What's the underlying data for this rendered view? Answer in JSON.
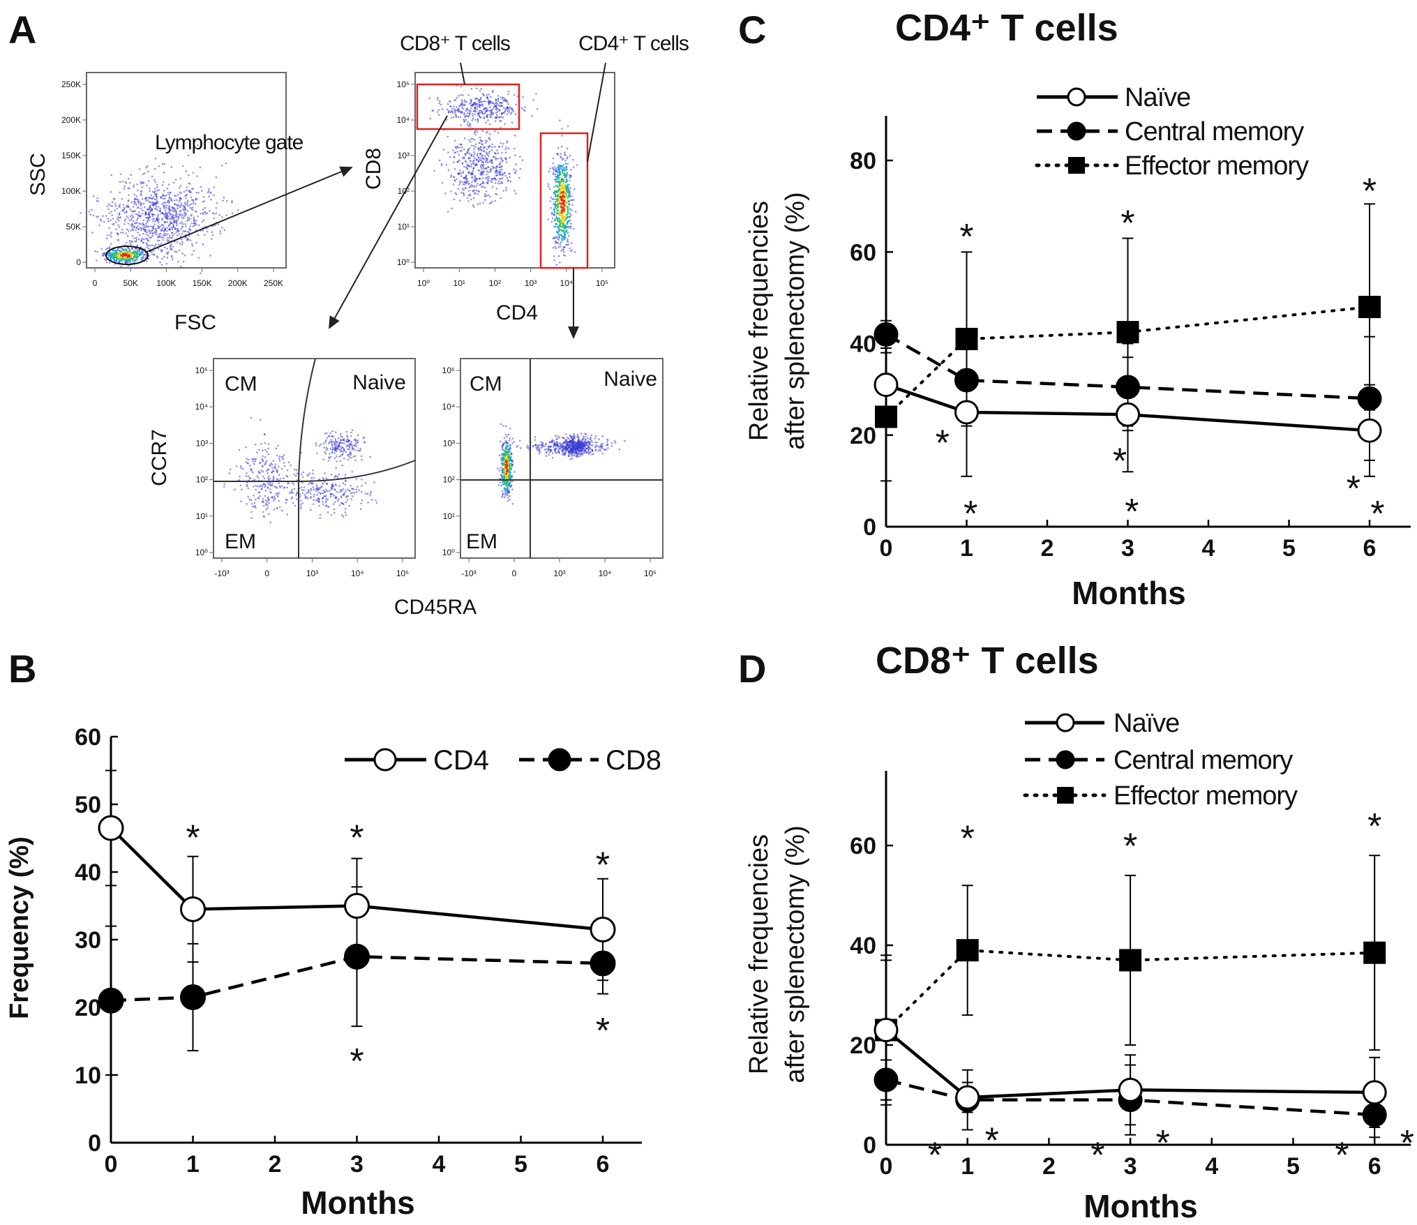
{
  "panels": {
    "A": {
      "letter": "A",
      "plot_scatter": {
        "xlabel": "FSC",
        "ylabel": "SSC",
        "gate_label": "Lymphocyte gate",
        "xticks": [
          "0",
          "50K",
          "100K",
          "150K",
          "200K",
          "250K"
        ],
        "yticks": [
          "0",
          "50K",
          "100K",
          "150K",
          "200K",
          "250K"
        ]
      },
      "plot_cd4cd8": {
        "xlabel": "CD4",
        "ylabel": "CD8",
        "gate_cd8_label": "CD8⁺ T cells",
        "gate_cd4_label": "CD4⁺ T cells",
        "xticks": [
          "10⁰",
          "10¹",
          "10²",
          "10³",
          "10⁴",
          "10⁵"
        ],
        "yticks": [
          "10⁰",
          "10¹",
          "10²",
          "10³",
          "10⁴",
          "10⁵"
        ],
        "gate_color": "#e02020"
      },
      "plot_memory": {
        "xlabel": "CD45RA",
        "ylabel": "CCR7",
        "quadrants": {
          "cm": "CM",
          "naive": "Naive",
          "em": "EM"
        },
        "xticks": [
          "-10³",
          "0",
          "10³",
          "10⁴",
          "10⁵"
        ],
        "yticks": [
          "10⁰",
          "10¹",
          "10²",
          "10³",
          "10⁴",
          "10⁵"
        ]
      }
    }
  },
  "chart_data": [
    {
      "panel": "B",
      "type": "line",
      "title": "",
      "xlabel": "Months",
      "ylabel": "Frequency (%)",
      "x": [
        0,
        1,
        3,
        6
      ],
      "xticks": [
        0,
        1,
        2,
        3,
        4,
        5,
        6
      ],
      "yticks": [
        0,
        10,
        20,
        30,
        40,
        50,
        60
      ],
      "xlim": [
        0,
        6.5
      ],
      "ylim": [
        0,
        60
      ],
      "grid": false,
      "legend": "top-right",
      "series": [
        {
          "name": "CD4",
          "line": "solid",
          "marker": "open-circle",
          "values": [
            46.5,
            34.5,
            35,
            31.5
          ],
          "error": [
            8.5,
            7.8,
            7,
            7.5
          ]
        },
        {
          "name": "CD8",
          "line": "dashed",
          "marker": "filled-circle",
          "values": [
            21,
            21.5,
            27.5,
            26.5
          ],
          "error": [
            11,
            7.9,
            10.3,
            4.5
          ]
        }
      ],
      "annotations": [
        {
          "x": 1,
          "y": 45.5,
          "text": "*"
        },
        {
          "x": 3,
          "y": 45.5,
          "text": "*"
        },
        {
          "x": 6,
          "y": 41.5,
          "text": "*"
        },
        {
          "x": 3,
          "y": 12.5,
          "text": "*"
        },
        {
          "x": 6,
          "y": 17,
          "text": "*"
        }
      ]
    },
    {
      "panel": "C",
      "type": "line",
      "title": "CD4⁺ T cells",
      "xlabel": "Months",
      "ylabel": [
        "Relative frequencies",
        "after splenectomy (%)"
      ],
      "x": [
        0,
        1,
        3,
        6
      ],
      "xticks": [
        0,
        1,
        2,
        3,
        4,
        5,
        6
      ],
      "yticks": [
        0,
        20,
        40,
        60,
        80
      ],
      "xlim": [
        0,
        6.5
      ],
      "ylim": [
        0,
        90
      ],
      "grid": false,
      "legend": "top-right",
      "series": [
        {
          "name": "Naïve",
          "line": "solid",
          "marker": "open-circle",
          "values": [
            31,
            25,
            24.5,
            21
          ],
          "error": [
            8,
            14,
            12.5,
            10
          ]
        },
        {
          "name": "Central memory",
          "line": "dashed",
          "marker": "filled-circle",
          "values": [
            42,
            32,
            30.5,
            28
          ],
          "error": [
            3,
            7,
            9.5,
            13.5
          ]
        },
        {
          "name": "Effector memory",
          "line": "dotted",
          "marker": "filled-square",
          "values": [
            24,
            41,
            42.5,
            48
          ],
          "error": [
            14,
            19,
            20.5,
            22.5
          ]
        }
      ],
      "annotations": [
        {
          "x": 1,
          "y": 64,
          "text": "*"
        },
        {
          "x": 3,
          "y": 67,
          "text": "*"
        },
        {
          "x": 6,
          "y": 74,
          "text": "*"
        },
        {
          "x": 0.7,
          "y": 19,
          "text": "*"
        },
        {
          "x": 1.05,
          "y": 3.5,
          "text": "*"
        },
        {
          "x": 2.9,
          "y": 15,
          "text": "*"
        },
        {
          "x": 3.05,
          "y": 4,
          "text": "*"
        },
        {
          "x": 5.8,
          "y": 9,
          "text": "*"
        },
        {
          "x": 6.1,
          "y": 3.5,
          "text": "*"
        }
      ]
    },
    {
      "panel": "D",
      "type": "line",
      "title": "CD8⁺ T cells",
      "xlabel": "Months",
      "ylabel": [
        "Relative frequencies",
        "after splenectomy (%)"
      ],
      "x": [
        0,
        1,
        3,
        6
      ],
      "xticks": [
        0,
        1,
        2,
        3,
        4,
        5,
        6
      ],
      "yticks": [
        0,
        20,
        40,
        60
      ],
      "xlim": [
        0,
        6.5
      ],
      "ylim": [
        0,
        75
      ],
      "grid": false,
      "legend": "top-right",
      "series": [
        {
          "name": "Naïve",
          "line": "solid",
          "marker": "open-circle",
          "values": [
            23,
            9.5,
            11,
            10.5
          ],
          "error": [
            15,
            3,
            7,
            7
          ]
        },
        {
          "name": "Central memory",
          "line": "dashed",
          "marker": "filled-circle",
          "values": [
            13,
            9,
            9,
            6
          ],
          "error": [
            4,
            6,
            7,
            4.5
          ]
        },
        {
          "name": "Effector memory",
          "line": "dotted",
          "marker": "filled-square",
          "values": [
            23,
            39,
            37,
            38.5
          ],
          "error": [
            14,
            13,
            17,
            19.5
          ]
        }
      ],
      "annotations": [
        {
          "x": 1,
          "y": 62,
          "text": "*"
        },
        {
          "x": 3,
          "y": 60.5,
          "text": "*"
        },
        {
          "x": 6,
          "y": 64.5,
          "text": "*"
        },
        {
          "x": 0.6,
          "y": -1.5,
          "text": "*"
        },
        {
          "x": 1.3,
          "y": 1.5,
          "text": "*"
        },
        {
          "x": 2.6,
          "y": -1.5,
          "text": "*"
        },
        {
          "x": 3.4,
          "y": 1,
          "text": "*"
        },
        {
          "x": 5.6,
          "y": -1.5,
          "text": "*"
        },
        {
          "x": 6.4,
          "y": 1,
          "text": "*"
        }
      ]
    }
  ]
}
